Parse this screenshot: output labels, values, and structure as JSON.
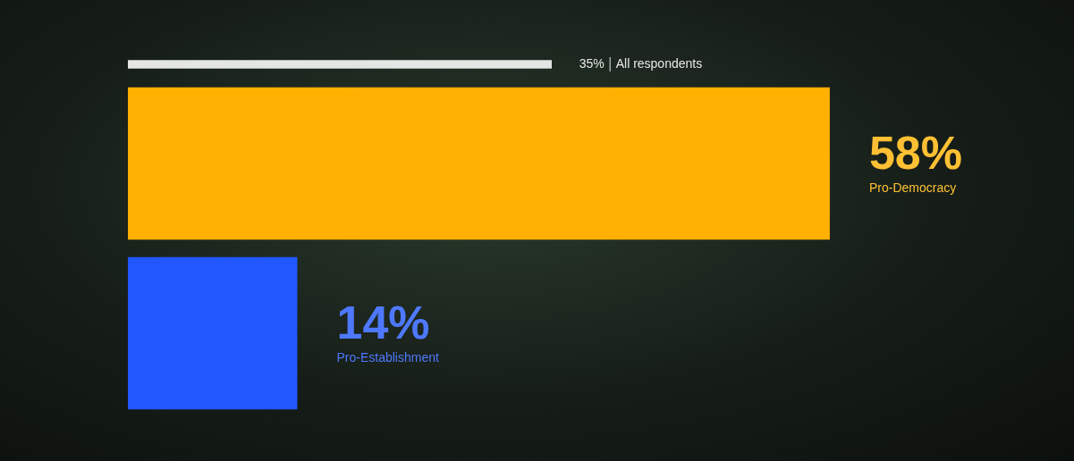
{
  "chart_data": [
    {
      "type": "bar",
      "orientation": "horizontal",
      "categories": [
        "All respondents"
      ],
      "values": [
        35
      ],
      "value_labels": [
        "35%"
      ],
      "color": "#e4e6e4",
      "xlim": [
        0,
        60
      ],
      "grid": false,
      "tick_labels": false,
      "data_labels": true
    },
    {
      "type": "bar",
      "orientation": "horizontal",
      "categories": [
        "Pro-Democracy",
        "Pro-Establishment"
      ],
      "values": [
        58,
        14
      ],
      "value_labels": [
        "58%",
        "14%"
      ],
      "colors": [
        "#ffb000",
        "#2257ff"
      ],
      "xlim": [
        0,
        60
      ],
      "grid": false,
      "tick_labels": false,
      "data_labels": true
    }
  ]
}
